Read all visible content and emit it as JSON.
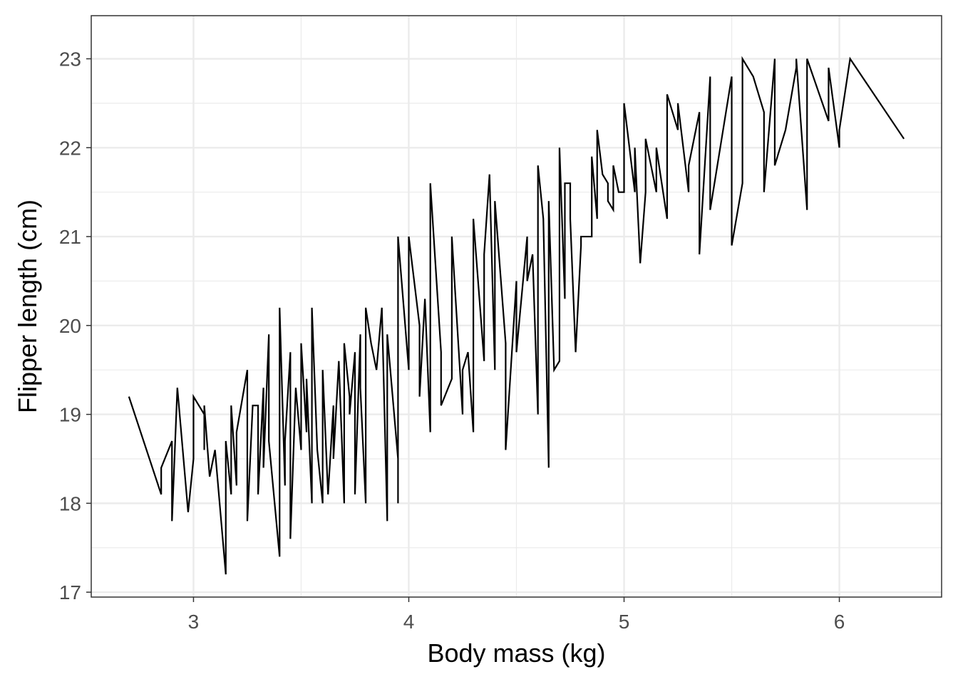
{
  "chart_data": {
    "type": "line",
    "title": "",
    "xlabel": "Body mass (kg)",
    "ylabel": "Flipper length (cm)",
    "xlim": [
      2.525,
      6.475
    ],
    "ylim": [
      16.945,
      23.485
    ],
    "x_ticks": [
      3,
      4,
      5,
      6
    ],
    "y_ticks": [
      17,
      18,
      19,
      20,
      21,
      22,
      23
    ],
    "x_tick_labels": [
      "3",
      "4",
      "5",
      "6"
    ],
    "y_tick_labels": [
      "17",
      "18",
      "19",
      "20",
      "21",
      "22",
      "23"
    ],
    "grid": true,
    "line_color": "#000000",
    "series": [
      {
        "x": [
          2.7,
          2.85,
          2.85,
          2.9,
          2.9,
          2.925,
          2.975,
          3.0,
          3.0,
          3.05,
          3.05,
          3.05,
          3.075,
          3.1,
          3.15,
          3.15,
          3.175,
          3.175,
          3.2,
          3.2,
          3.25,
          3.25,
          3.275,
          3.3,
          3.3,
          3.325,
          3.325,
          3.35,
          3.35,
          3.4,
          3.4,
          3.425,
          3.425,
          3.45,
          3.45,
          3.475,
          3.5,
          3.5,
          3.525,
          3.525,
          3.55,
          3.55,
          3.575,
          3.6,
          3.6,
          3.625,
          3.65,
          3.65,
          3.675,
          3.7,
          3.7,
          3.725,
          3.725,
          3.75,
          3.75,
          3.775,
          3.775,
          3.8,
          3.8,
          3.825,
          3.85,
          3.875,
          3.9,
          3.9,
          3.95,
          3.95,
          3.95,
          4.0,
          4.0,
          4.05,
          4.05,
          4.075,
          4.1,
          4.1,
          4.15,
          4.15,
          4.2,
          4.2,
          4.25,
          4.25,
          4.275,
          4.3,
          4.3,
          4.35,
          4.35,
          4.375,
          4.4,
          4.4,
          4.45,
          4.45,
          4.5,
          4.5,
          4.55,
          4.55,
          4.575,
          4.6,
          4.6,
          4.625,
          4.65,
          4.65,
          4.675,
          4.7,
          4.7,
          4.725,
          4.725,
          4.75,
          4.75,
          4.775,
          4.8,
          4.8,
          4.85,
          4.85,
          4.875,
          4.875,
          4.9,
          4.925,
          4.925,
          4.95,
          4.95,
          4.975,
          5.0,
          5.0,
          5.05,
          5.05,
          5.075,
          5.1,
          5.1,
          5.15,
          5.15,
          5.2,
          5.2,
          5.25,
          5.25,
          5.3,
          5.3,
          5.35,
          5.35,
          5.4,
          5.4,
          5.5,
          5.5,
          5.55,
          5.55,
          5.6,
          5.65,
          5.65,
          5.7,
          5.7,
          5.75,
          5.8,
          5.8,
          5.85,
          5.85,
          5.95,
          5.95,
          6.0,
          6.0,
          6.05,
          6.3
        ],
        "y": [
          19.2,
          18.1,
          18.4,
          18.7,
          17.8,
          19.3,
          17.9,
          18.5,
          19.2,
          19.0,
          18.6,
          19.1,
          18.3,
          18.6,
          17.2,
          18.7,
          18.1,
          19.1,
          18.2,
          18.8,
          19.5,
          17.8,
          19.1,
          19.1,
          18.1,
          19.3,
          18.4,
          19.9,
          18.7,
          17.4,
          20.2,
          18.2,
          18.7,
          19.7,
          17.6,
          19.3,
          18.6,
          19.8,
          18.8,
          19.4,
          18.0,
          20.2,
          18.6,
          18.0,
          19.5,
          18.1,
          19.1,
          18.5,
          19.6,
          18.0,
          19.8,
          19.2,
          19.0,
          19.7,
          18.1,
          19.9,
          19.3,
          18.0,
          20.2,
          19.8,
          19.5,
          20.2,
          17.8,
          19.9,
          18.5,
          18.0,
          21.0,
          19.5,
          21.0,
          20.0,
          19.2,
          20.3,
          18.8,
          21.6,
          19.7,
          19.1,
          19.4,
          21.0,
          19.0,
          19.5,
          19.7,
          18.8,
          21.2,
          19.6,
          20.8,
          21.7,
          19.5,
          21.4,
          19.8,
          18.6,
          20.5,
          19.7,
          21.0,
          20.5,
          20.8,
          19.0,
          21.8,
          21.2,
          18.4,
          21.4,
          19.5,
          19.6,
          22.0,
          20.3,
          21.6,
          21.6,
          21.2,
          19.7,
          20.9,
          21.0,
          21.0,
          21.9,
          21.2,
          22.2,
          21.7,
          21.6,
          21.4,
          21.3,
          21.8,
          21.5,
          21.5,
          22.5,
          21.5,
          22.0,
          20.7,
          21.5,
          22.1,
          21.5,
          22.0,
          21.2,
          22.6,
          22.2,
          22.5,
          21.5,
          21.8,
          22.4,
          20.8,
          22.8,
          21.3,
          22.8,
          20.9,
          21.6,
          23.0,
          22.8,
          22.4,
          21.5,
          23.0,
          21.8,
          22.2,
          22.9,
          23.0,
          21.3,
          23.0,
          22.3,
          22.9,
          22.0,
          22.2,
          23.0,
          22.1
        ]
      }
    ]
  }
}
